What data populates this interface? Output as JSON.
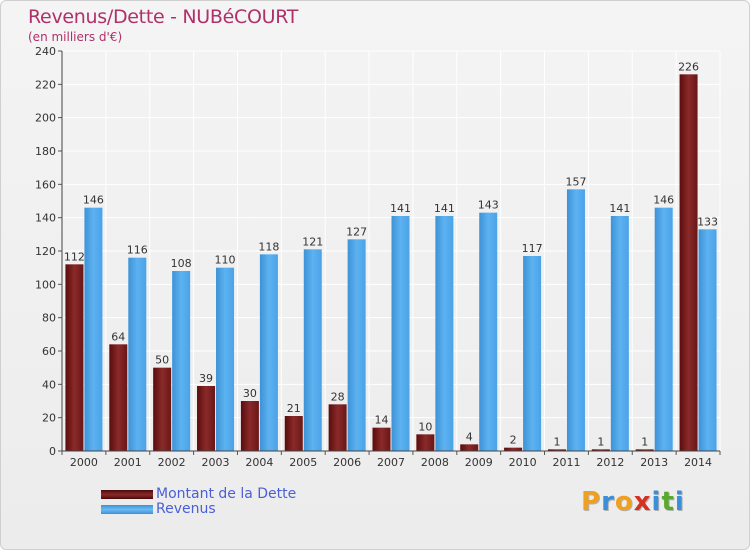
{
  "header": {
    "title": "Revenus/Dette - NUBéCOURT",
    "subtitle": "(en milliers d'€)"
  },
  "logo": {
    "letters": [
      "P",
      "r",
      "o",
      "x",
      "i",
      "t",
      "i"
    ],
    "colors": [
      "#f0a020",
      "#3a8fd8",
      "#f0a020",
      "#d83020",
      "#3a8fd8",
      "#5aa830",
      "#3a8fd8"
    ]
  },
  "chart_data": {
    "type": "bar",
    "categories": [
      "2000",
      "2001",
      "2002",
      "2003",
      "2004",
      "2005",
      "2006",
      "2007",
      "2008",
      "2009",
      "2010",
      "2011",
      "2012",
      "2013",
      "2014"
    ],
    "series": [
      {
        "name": "Montant de la Dette",
        "color": "#7a1e1e",
        "values": [
          112,
          64,
          50,
          39,
          30,
          21,
          28,
          14,
          10,
          4,
          2,
          1,
          1,
          1,
          226
        ]
      },
      {
        "name": "Revenus",
        "color": "#4aa3e8",
        "values": [
          146,
          116,
          108,
          110,
          118,
          121,
          127,
          141,
          141,
          143,
          117,
          157,
          141,
          146,
          133
        ]
      }
    ],
    "ylim": [
      0,
      240
    ],
    "yticks": [
      0,
      20,
      40,
      60,
      80,
      100,
      120,
      140,
      160,
      180,
      200,
      220,
      240
    ],
    "grid": true,
    "legend": "bottom-left"
  }
}
